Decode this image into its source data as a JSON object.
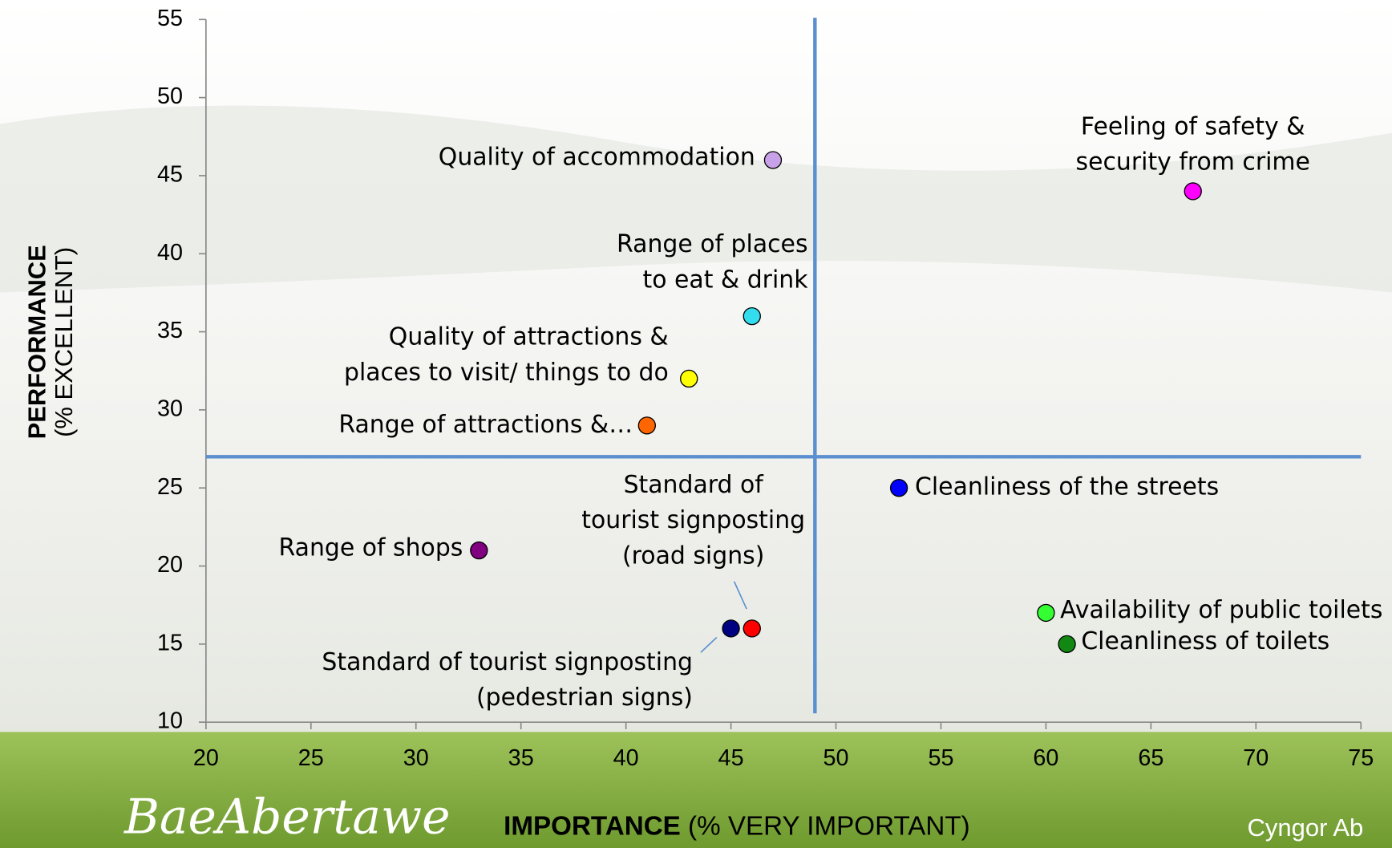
{
  "chart_data": {
    "type": "scatter",
    "xlabel": {
      "bold": "IMPORTANCE",
      "text": "(% VERY IMPORTANT)"
    },
    "ylabel": {
      "bold": "PERFORMANCE",
      "text": "(% EXCELLENT)"
    },
    "xlim": [
      20,
      75
    ],
    "xticks": [
      20,
      25,
      30,
      35,
      40,
      45,
      50,
      55,
      60,
      65,
      70,
      75
    ],
    "ylim": [
      10,
      55
    ],
    "yticks": [
      10,
      15,
      20,
      25,
      30,
      35,
      40,
      45,
      50,
      55
    ],
    "quadrant_x": 49,
    "quadrant_y": 27,
    "quadrant_color": "#5b8fd0",
    "series": [
      {
        "name": [
          "Quality of accommodation"
        ],
        "color": "#c8a2e8",
        "x": [
          47
        ],
        "values": [
          46
        ]
      },
      {
        "name": [
          "Feeling of safety &",
          "security from crime"
        ],
        "color": "#ff00ff",
        "x": [
          67
        ],
        "values": [
          44
        ]
      },
      {
        "name": [
          "Range of places",
          "to eat & drink"
        ],
        "color": "#33ddee",
        "x": [
          46
        ],
        "values": [
          36
        ]
      },
      {
        "name": [
          "Quality of attractions &",
          "places to visit/ things to do"
        ],
        "color": "#ffff00",
        "x": [
          43
        ],
        "values": [
          32
        ]
      },
      {
        "name": [
          "Range of attractions &…"
        ],
        "color": "#ff6600",
        "x": [
          41
        ],
        "values": [
          29
        ]
      },
      {
        "name": [
          "Cleanliness of the streets"
        ],
        "color": "#0000ff",
        "x": [
          53
        ],
        "values": [
          25
        ]
      },
      {
        "name": [
          "Range of shops"
        ],
        "color": "#800080",
        "x": [
          33
        ],
        "values": [
          21
        ]
      },
      {
        "name": [
          "Standard of",
          "tourist signposting",
          "(road signs)"
        ],
        "color": "#ff0000",
        "x": [
          46
        ],
        "values": [
          16
        ]
      },
      {
        "name": [
          "Standard of tourist signposting",
          "(pedestrian signs)"
        ],
        "color": "#000080",
        "x": [
          45
        ],
        "values": [
          16
        ]
      },
      {
        "name": [
          "Availability of public toilets"
        ],
        "color": "#33ff33",
        "x": [
          60
        ],
        "values": [
          17
        ]
      },
      {
        "name": [
          "Cleanliness of toilets"
        ],
        "color": "#118811",
        "x": [
          61
        ],
        "values": [
          15
        ]
      }
    ],
    "logos": [
      "BaeAbertawe",
      "Cyngor Ab"
    ]
  }
}
